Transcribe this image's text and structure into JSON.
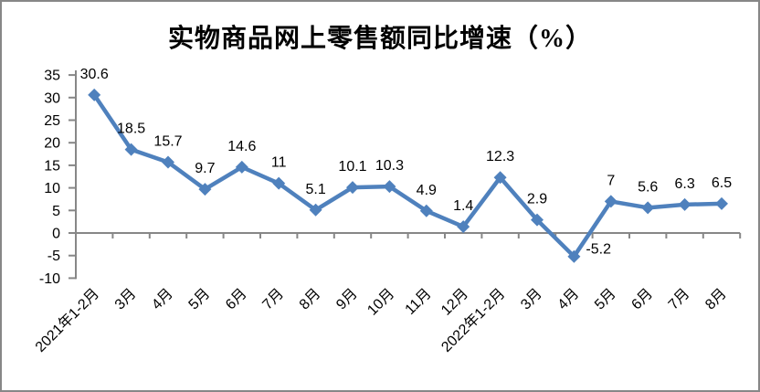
{
  "chart_data": {
    "type": "line",
    "title": "实物商品网上零售额同比增速（%）",
    "categories": [
      "2021年1-2月",
      "3月",
      "4月",
      "5月",
      "6月",
      "7月",
      "8月",
      "9月",
      "10月",
      "11月",
      "12月",
      "2022年1-2月",
      "3月",
      "4月",
      "5月",
      "6月",
      "7月",
      "8月"
    ],
    "values": [
      30.6,
      18.5,
      15.7,
      9.7,
      14.6,
      11,
      5.1,
      10.1,
      10.3,
      4.9,
      1.4,
      12.3,
      2.9,
      -5.2,
      7,
      5.6,
      6.3,
      6.5
    ],
    "data_labels": [
      "30.6",
      "18.5",
      "15.7",
      "9.7",
      "14.6",
      "11",
      "5.1",
      "10.1",
      "10.3",
      "4.9",
      "1.4",
      "12.3",
      "2.9",
      "-5.2",
      "7",
      "5.6",
      "6.3",
      "6.5"
    ],
    "ylabel": "",
    "xlabel": "",
    "ylim": [
      -10,
      35
    ],
    "yticks": [
      -10,
      -5,
      0,
      5,
      10,
      15,
      20,
      25,
      30,
      35
    ],
    "grid": "none",
    "legend": "none",
    "marker_shape": "diamond",
    "colors": {
      "line": "#4F81BD",
      "axis": "#878787",
      "text": "#000000"
    }
  }
}
